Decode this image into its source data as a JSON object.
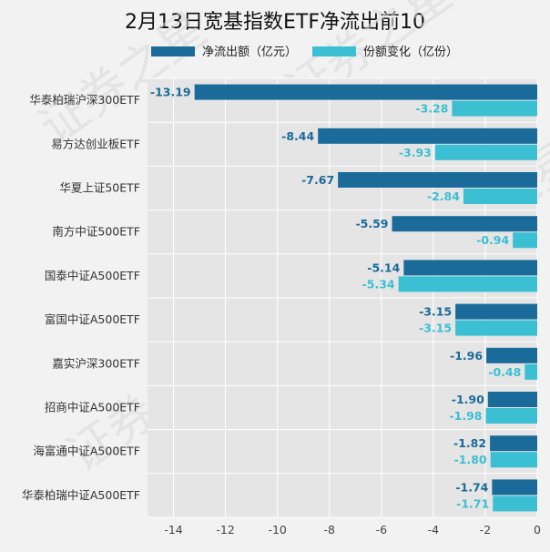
{
  "chart_data": {
    "type": "bar",
    "orientation": "horizontal",
    "title": "2月13日宽基指数ETF净流出前10",
    "categories": [
      "华泰柏瑞沪深300ETF",
      "易方达创业板ETF",
      "华夏上证50ETF",
      "南方中证500ETF",
      "国泰中证A500ETF",
      "富国中证A500ETF",
      "嘉实沪深300ETF",
      "招商中证A500ETF",
      "海富通中证A500ETF",
      "华泰柏瑞中证A500ETF"
    ],
    "series": [
      {
        "name": "净流出额（亿元）",
        "color": "#1a6b9a",
        "values": [
          -13.19,
          -8.44,
          -7.67,
          -5.59,
          -5.14,
          -3.15,
          -1.96,
          -1.9,
          -1.82,
          -1.74
        ],
        "labels": [
          "-13.19",
          "-8.44",
          "-7.67",
          "-5.59",
          "-5.14",
          "-3.15",
          "-1.96",
          "-1.90",
          "-1.82",
          "-1.74"
        ]
      },
      {
        "name": "份额变化（亿份）",
        "color": "#3bbfd2",
        "values": [
          -3.28,
          -3.93,
          -2.84,
          -0.94,
          -5.34,
          -3.15,
          -0.48,
          -1.98,
          -1.8,
          -1.71
        ],
        "labels": [
          "-3.28",
          "-3.93",
          "-2.84",
          "-0.94",
          "-5.34",
          "-3.15",
          "-0.48",
          "-1.98",
          "-1.80",
          "-1.71"
        ]
      }
    ],
    "xlim": [
      -15,
      0
    ],
    "x_ticks": [
      -14,
      -12,
      -10,
      -8,
      -6,
      -4,
      -2,
      0
    ],
    "grid": true,
    "legend": "top",
    "plot_background": "#e5e5e5",
    "watermark": "证券之星"
  }
}
